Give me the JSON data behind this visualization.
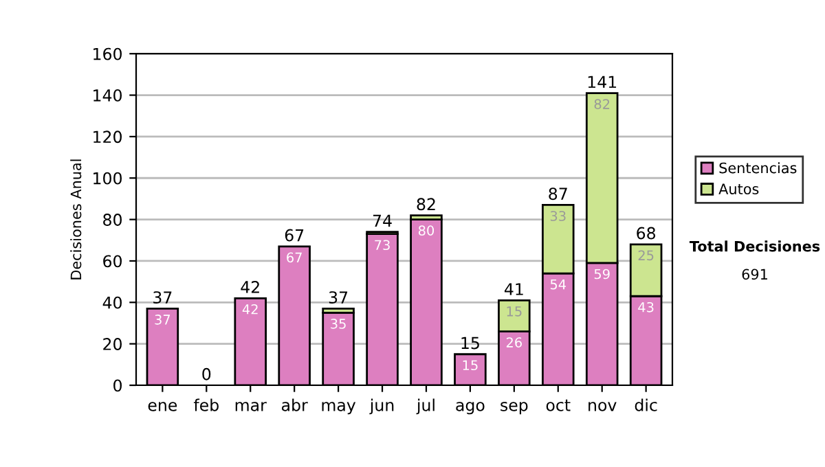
{
  "chart_data": {
    "type": "bar",
    "stacked": true,
    "ylabel": "Decisiones Anual",
    "categories": [
      "ene",
      "feb",
      "mar",
      "abr",
      "may",
      "jun",
      "jul",
      "ago",
      "sep",
      "oct",
      "nov",
      "dic"
    ],
    "series": [
      {
        "name": "Sentencias",
        "color": "#dd7fc0",
        "values": [
          37,
          0,
          42,
          67,
          35,
          73,
          80,
          15,
          26,
          54,
          59,
          43
        ],
        "value_labels": [
          "37",
          null,
          "42",
          "67",
          "35",
          "73",
          "80",
          "15",
          "26",
          "54",
          "59",
          "43"
        ]
      },
      {
        "name": "Autos",
        "color": "#cce590",
        "values": [
          0,
          0,
          0,
          0,
          2,
          1,
          2,
          0,
          15,
          33,
          82,
          25
        ],
        "value_labels": [
          null,
          null,
          null,
          null,
          null,
          null,
          null,
          null,
          "15",
          "33",
          "82",
          "25"
        ]
      }
    ],
    "totals": [
      "37",
      "0",
      "42",
      "67",
      "37",
      "74",
      "82",
      "15",
      "41",
      "87",
      "141",
      "68"
    ],
    "ylim": [
      0,
      160
    ],
    "yticks": [
      0,
      20,
      40,
      60,
      80,
      100,
      120,
      140,
      160
    ],
    "grid": "y",
    "legend": "right",
    "annotations": [
      "Total Decisiones",
      "691"
    ]
  }
}
